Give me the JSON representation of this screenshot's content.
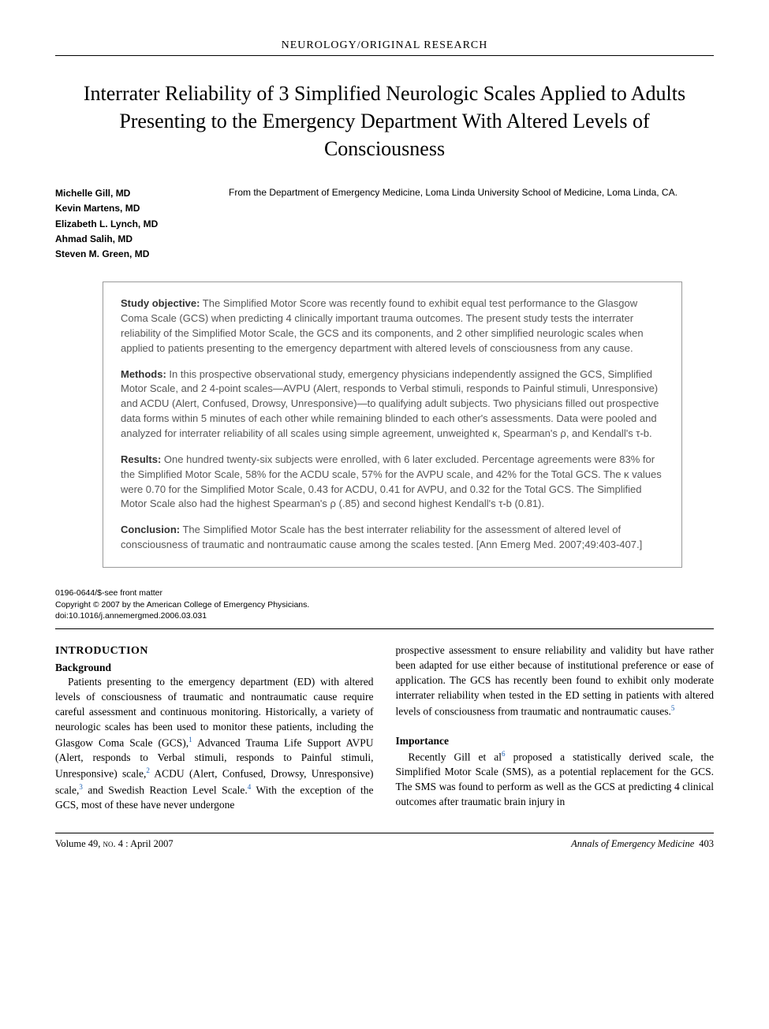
{
  "header": {
    "section": "NEUROLOGY/ORIGINAL RESEARCH"
  },
  "title": "Interrater Reliability of 3 Simplified Neurologic Scales Applied to Adults Presenting to the Emergency Department With Altered Levels of Consciousness",
  "authors": [
    "Michelle Gill, MD",
    "Kevin Martens, MD",
    "Elizabeth L. Lynch, MD",
    "Ahmad Salih, MD",
    "Steven M. Green, MD"
  ],
  "affiliation": "From the Department of Emergency Medicine, Loma Linda University School of Medicine, Loma Linda, CA.",
  "abstract": {
    "objective": {
      "label": "Study objective:",
      "text": " The Simplified Motor Score was recently found to exhibit equal test performance to the Glasgow Coma Scale (GCS) when predicting 4 clinically important trauma outcomes. The present study tests the interrater reliability of the Simplified Motor Scale, the GCS and its components, and 2 other simplified neurologic scales when applied to patients presenting to the emergency department with altered levels of consciousness from any cause."
    },
    "methods": {
      "label": "Methods:",
      "text": " In this prospective observational study, emergency physicians independently assigned the GCS, Simplified Motor Scale, and 2 4-point scales—AVPU (Alert, responds to Verbal stimuli, responds to Painful stimuli, Unresponsive) and ACDU (Alert, Confused, Drowsy, Unresponsive)—to qualifying adult subjects. Two physicians filled out prospective data forms within 5 minutes of each other while remaining blinded to each other's assessments. Data were pooled and analyzed for interrater reliability of all scales using simple agreement, unweighted κ, Spearman's ρ, and Kendall's τ-b."
    },
    "results": {
      "label": "Results:",
      "text": " One hundred twenty-six subjects were enrolled, with 6 later excluded. Percentage agreements were 83% for the Simplified Motor Scale, 58% for the ACDU scale, 57% for the AVPU scale, and 42% for the Total GCS. The κ values were 0.70 for the Simplified Motor Scale, 0.43 for ACDU, 0.41 for AVPU, and 0.32 for the Total GCS. The Simplified Motor Scale also had the highest Spearman's ρ (.85) and second highest Kendall's τ-b (0.81)."
    },
    "conclusion": {
      "label": "Conclusion:",
      "text": " The Simplified Motor Scale has the best interrater reliability for the assessment of altered level of consciousness of traumatic and nontraumatic cause among the scales tested. [Ann Emerg Med. 2007;49:403-407.]"
    }
  },
  "copyright": {
    "line1": "0196-0644/$-see front matter",
    "line2": "Copyright © 2007 by the American College of Emergency Physicians.",
    "line3": "doi:10.1016/j.annemergmed.2006.03.031"
  },
  "body": {
    "intro_heading": "INTRODUCTION",
    "background_heading": "Background",
    "col1_p1_a": "Patients presenting to the emergency department (ED) with altered levels of consciousness of traumatic and nontraumatic cause require careful assessment and continuous monitoring. Historically, a variety of neurologic scales has been used to monitor these patients, including the Glasgow Coma Scale (GCS),",
    "ref1": "1",
    "col1_p1_b": " Advanced Trauma Life Support AVPU (Alert, responds to Verbal stimuli, responds to Painful stimuli, Unresponsive) scale,",
    "ref2": "2",
    "col1_p1_c": " ACDU (Alert, Confused, Drowsy, Unresponsive) scale,",
    "ref3": "3",
    "col1_p1_d": " and Swedish Reaction Level Scale.",
    "ref4": "4",
    "col1_p1_e": " With the exception of the GCS, most of these have never undergone",
    "col2_p1_a": "prospective assessment to ensure reliability and validity but have rather been adapted for use either because of institutional preference or ease of application. The GCS has recently been found to exhibit only moderate interrater reliability when tested in the ED setting in patients with altered levels of consciousness from traumatic and nontraumatic causes.",
    "ref5": "5",
    "importance_heading": "Importance",
    "col2_p2_a": "Recently Gill et al",
    "ref6": "6",
    "col2_p2_b": " proposed a statistically derived scale, the Simplified Motor Scale (SMS), as a potential replacement for the GCS. The SMS was found to perform as well as the GCS at predicting 4 clinical outcomes after traumatic brain injury in"
  },
  "footer": {
    "volume": "Volume 49, ",
    "issue": "no. 4",
    "date": " : April 2007",
    "journal_prefix": "Annals ",
    "journal_of": "of ",
    "journal_rest": "Emergency Medicine",
    "page": "403"
  },
  "colors": {
    "text": "#000000",
    "abstract_text": "#555555",
    "abstract_label": "#333333",
    "link": "#1a5fb4",
    "border": "#999999",
    "background": "#ffffff"
  },
  "typography": {
    "body_font": "Georgia, Times New Roman, serif",
    "sans_font": "Arial, Helvetica, sans-serif",
    "title_size_pt": 26,
    "body_size_pt": 13.5,
    "abstract_size_pt": 13,
    "author_size_pt": 12,
    "copyright_size_pt": 10.5
  }
}
